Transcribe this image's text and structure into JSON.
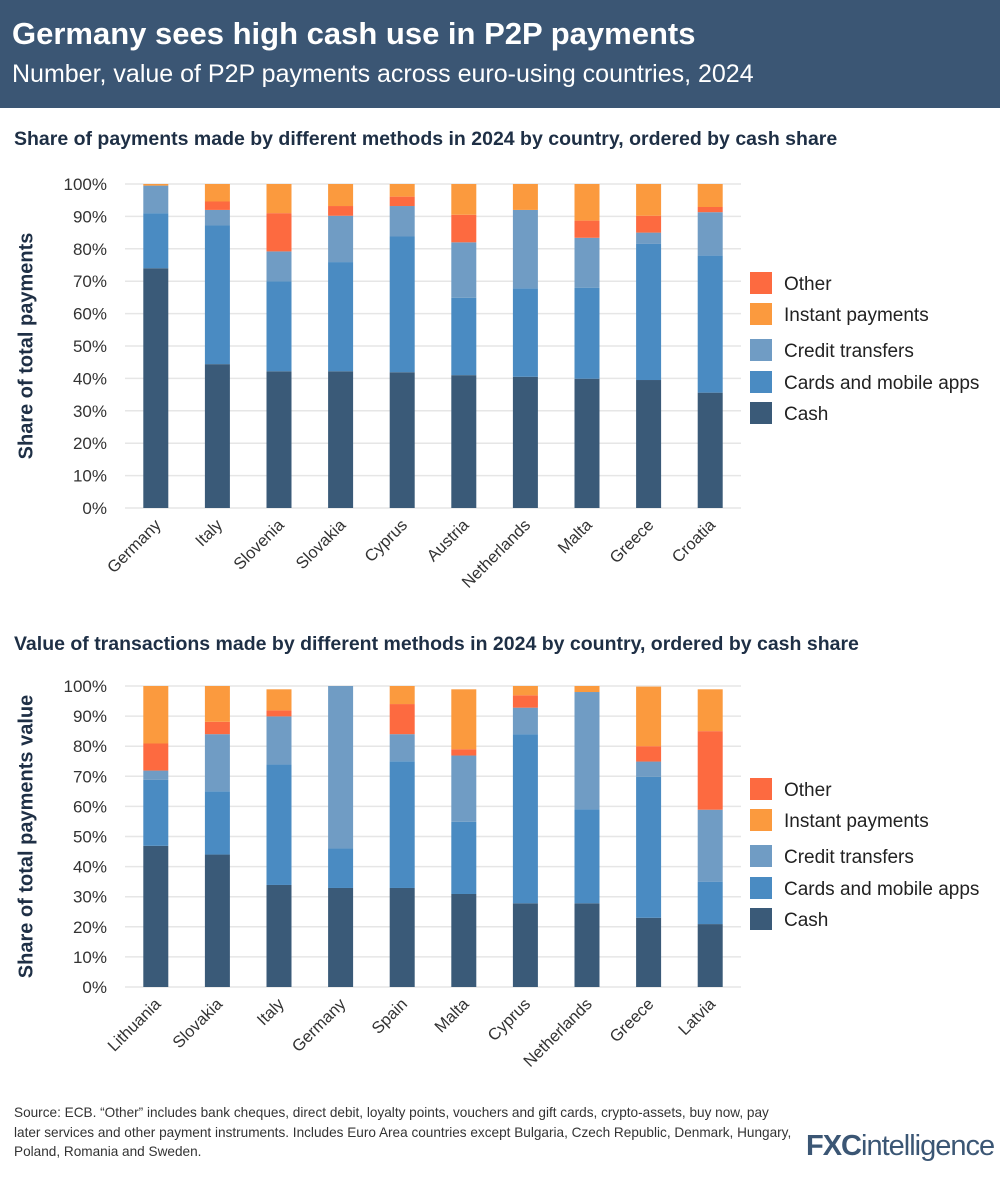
{
  "header": {
    "title": "Germany sees high cash use in P2P payments",
    "subtitle": "Number, value of P2P payments across euro-using countries, 2024"
  },
  "colors": {
    "Cash": "#3a5a78",
    "Cards and mobile apps": "#4a8bc2",
    "Credit transfers": "#709cc4",
    "Instant payments": "#fb9a3e",
    "Other": "#fd6a40"
  },
  "chart_data": [
    {
      "type": "bar",
      "stacked": true,
      "title": "Share of payments made by different methods in 2024 by country, ordered by cash share",
      "ylabel": "Share of total payments",
      "ylim": [
        0,
        100
      ],
      "yticks": [
        "0%",
        "10%",
        "20%",
        "30%",
        "40%",
        "50%",
        "60%",
        "70%",
        "80%",
        "90%",
        "100%"
      ],
      "grid": true,
      "legend": "right",
      "categories": [
        "Germany",
        "Italy",
        "Slovenia",
        "Slovakia",
        "Cyprus",
        "Austria",
        "Netherlands",
        "Malta",
        "Greece",
        "Croatia"
      ],
      "legend_order": [
        "Other",
        "Instant payments",
        "Credit transfers",
        "Cards and mobile apps",
        "Cash"
      ],
      "series": [
        {
          "name": "Cash",
          "values": [
            74,
            44.4,
            42.2,
            42.2,
            41.9,
            41,
            40.5,
            39.9,
            39.5,
            35.6
          ]
        },
        {
          "name": "Cards and mobile apps",
          "values": [
            17,
            42.8,
            27.7,
            33.7,
            41.9,
            23.9,
            27.3,
            28.1,
            42,
            42.3
          ]
        },
        {
          "name": "Credit transfers",
          "values": [
            8.5,
            4.8,
            9.3,
            14.3,
            9.4,
            17.1,
            24.2,
            15.4,
            3.5,
            13.4
          ]
        },
        {
          "name": "Other",
          "values": [
            0,
            2.6,
            11.8,
            3,
            2.9,
            8.5,
            0,
            5.3,
            5.2,
            1.6
          ]
        },
        {
          "name": "Instant payments",
          "values": [
            0.5,
            5.4,
            9,
            6.8,
            3.9,
            9.5,
            8,
            11.3,
            9.8,
            7.1
          ]
        }
      ]
    },
    {
      "type": "bar",
      "stacked": true,
      "title": "Value of transactions made by different methods in 2024 by country, ordered by cash share",
      "ylabel": "Share of total payments value",
      "ylim": [
        0,
        100
      ],
      "yticks": [
        "0%",
        "10%",
        "20%",
        "30%",
        "40%",
        "50%",
        "60%",
        "70%",
        "80%",
        "90%",
        "100%"
      ],
      "grid": true,
      "legend": "right",
      "categories": [
        "Lithuania",
        "Slovakia",
        "Italy",
        "Germany",
        "Spain",
        "Malta",
        "Cyprus",
        "Netherlands",
        "Greece",
        "Latvia"
      ],
      "legend_order": [
        "Other",
        "Instant payments",
        "Credit transfers",
        "Cards and mobile apps",
        "Cash"
      ],
      "series": [
        {
          "name": "Cash",
          "values": [
            46.9,
            44,
            33.9,
            32.9,
            32.9,
            30.9,
            27.8,
            27.8,
            23,
            20.9
          ]
        },
        {
          "name": "Cards and mobile apps",
          "values": [
            21.9,
            21,
            40,
            13.1,
            42.1,
            24,
            56.2,
            31.2,
            46.8,
            14.1
          ]
        },
        {
          "name": "Credit transfers",
          "values": [
            3.1,
            19,
            16,
            54,
            9,
            22,
            8.8,
            39,
            5.1,
            23.9
          ]
        },
        {
          "name": "Other",
          "values": [
            9,
            4.1,
            2,
            0,
            10,
            2.1,
            4.1,
            0,
            5.1,
            26.1
          ]
        },
        {
          "name": "Instant payments",
          "values": [
            19.1,
            11.9,
            7,
            0,
            6,
            19.9,
            3.1,
            2,
            19.8,
            13.9
          ]
        }
      ]
    }
  ],
  "footer": {
    "source": "Source: ECB. “Other” includes bank cheques, direct debit, loyalty points, vouchers and gift cards, crypto-assets, buy now, pay later services and other payment instruments. Includes Euro Area countries except Bulgaria, Czech Republic, Denmark, Hungary, Poland, Romania and Sweden.",
    "logo": "FXCintelligence"
  }
}
